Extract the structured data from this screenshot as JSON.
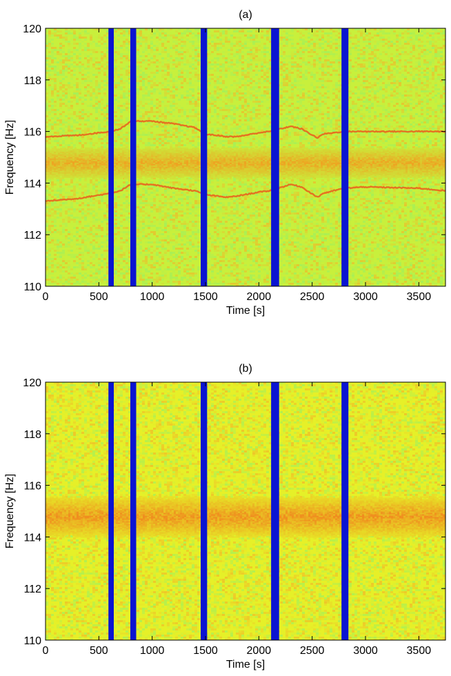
{
  "chart_data": [
    {
      "type": "heatmap",
      "title": "(a)",
      "xlabel": "Time [s]",
      "ylabel": "Frequency [Hz]",
      "xlim": [
        0,
        3750
      ],
      "ylim": [
        110,
        120
      ],
      "x_ticks": [
        0,
        500,
        1000,
        1500,
        2000,
        2500,
        3000,
        3500
      ],
      "y_ticks": [
        110,
        112,
        114,
        116,
        118,
        120
      ],
      "x_tick_labels": [
        "0",
        "500",
        "1000",
        "1500",
        "2000",
        "2500",
        "3000",
        "3500"
      ],
      "y_tick_labels": [
        "110",
        "112",
        "114",
        "116",
        "118",
        "120"
      ],
      "background_color": "#c8f03c",
      "gap_color": "#0a14d2",
      "gaps": [
        [
          590,
          640
        ],
        [
          795,
          850
        ],
        [
          1455,
          1515
        ],
        [
          2115,
          2190
        ],
        [
          2775,
          2840
        ]
      ],
      "central_band": {
        "center": 114.8,
        "halfwidth": 0.45,
        "color": "#f0a020"
      },
      "sidebands": [
        {
          "name": "upper",
          "color": "#e8641e",
          "x": [
            0,
            300,
            600,
            700,
            800,
            1000,
            1200,
            1400,
            1500,
            1700,
            1800,
            2000,
            2100,
            2300,
            2400,
            2550,
            2600,
            2800,
            3000,
            3500,
            3750
          ],
          "y": [
            115.8,
            115.85,
            116.0,
            116.1,
            116.4,
            116.4,
            116.3,
            116.15,
            115.9,
            115.8,
            115.8,
            115.95,
            116.0,
            116.2,
            116.1,
            115.75,
            115.9,
            116.0,
            116.0,
            116.0,
            116.0
          ]
        },
        {
          "name": "lower",
          "color": "#e8641e",
          "x": [
            0,
            300,
            600,
            700,
            800,
            1000,
            1200,
            1400,
            1500,
            1700,
            1800,
            2000,
            2100,
            2300,
            2400,
            2550,
            2600,
            2800,
            3000,
            3500,
            3750
          ],
          "y": [
            113.3,
            113.4,
            113.6,
            113.7,
            113.95,
            113.95,
            113.8,
            113.7,
            113.55,
            113.45,
            113.5,
            113.65,
            113.7,
            113.95,
            113.85,
            113.45,
            113.6,
            113.8,
            113.85,
            113.8,
            113.7
          ]
        }
      ]
    },
    {
      "type": "heatmap",
      "title": "(b)",
      "xlabel": "Time [s]",
      "ylabel": "Frequency [Hz]",
      "xlim": [
        0,
        3750
      ],
      "ylim": [
        110,
        120
      ],
      "x_ticks": [
        0,
        500,
        1000,
        1500,
        2000,
        2500,
        3000,
        3500
      ],
      "y_ticks": [
        110,
        112,
        114,
        116,
        118,
        120
      ],
      "x_tick_labels": [
        "0",
        "500",
        "1000",
        "1500",
        "2000",
        "2500",
        "3000",
        "3500"
      ],
      "y_tick_labels": [
        "110",
        "112",
        "114",
        "116",
        "118",
        "120"
      ],
      "background_color": "#e6f028",
      "gap_color": "#0a14d2",
      "gaps": [
        [
          590,
          640
        ],
        [
          795,
          850
        ],
        [
          1455,
          1515
        ],
        [
          2115,
          2190
        ],
        [
          2775,
          2840
        ]
      ],
      "central_band": {
        "center": 114.8,
        "halfwidth": 0.6,
        "color": "#f08a1e"
      },
      "sidebands": []
    }
  ]
}
